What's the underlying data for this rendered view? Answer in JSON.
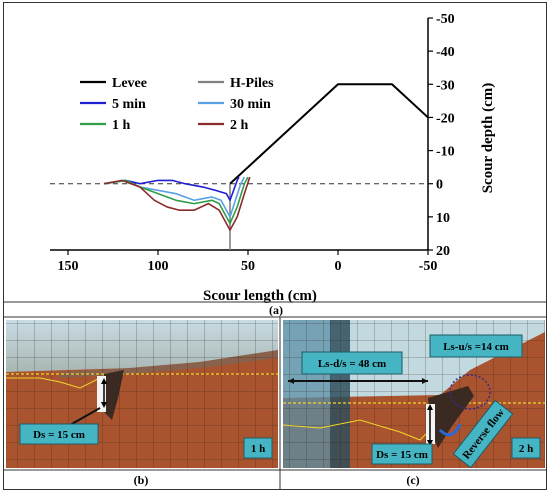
{
  "chart_data": {
    "type": "line",
    "title": "",
    "xlabel": "Scour length (cm)",
    "ylabel": "Scour depth (cm)",
    "xlim": [
      160,
      -50
    ],
    "ylim": [
      20,
      -50
    ],
    "x_ticks": [
      150,
      100,
      50,
      0,
      -50
    ],
    "y_ticks": [
      -50,
      -40,
      -30,
      -20,
      -10,
      0,
      10,
      20
    ],
    "legend_position": "top-left",
    "series": [
      {
        "name": "Levee",
        "color": "#000000",
        "x": [
          60,
          0,
          -30,
          -50
        ],
        "y": [
          0,
          -30,
          -30,
          -20
        ]
      },
      {
        "name": "H-Piles",
        "color": "#808080",
        "x": [
          60,
          60
        ],
        "y": [
          0,
          20
        ]
      },
      {
        "name": "5 min",
        "color": "#1f1fd0",
        "x": [
          130,
          118,
          110,
          100,
          92,
          85,
          75,
          68,
          62,
          60,
          58,
          56,
          55
        ],
        "y": [
          0,
          -1,
          0,
          -1,
          -1,
          0,
          1,
          2,
          3,
          5,
          2,
          -1,
          -2
        ]
      },
      {
        "name": "30 min",
        "color": "#5aa0e6",
        "x": [
          130,
          118,
          110,
          100,
          90,
          80,
          70,
          65,
          62,
          60,
          57,
          54,
          52
        ],
        "y": [
          0,
          -1,
          1,
          2,
          3,
          5,
          4,
          5,
          8,
          10,
          5,
          0,
          -2
        ]
      },
      {
        "name": "1 h",
        "color": "#2e9e48",
        "x": [
          130,
          118,
          110,
          100,
          90,
          80,
          70,
          66,
          62,
          60,
          56,
          52,
          50
        ],
        "y": [
          0,
          -1,
          1,
          3,
          5,
          6,
          5,
          6,
          10,
          12,
          7,
          0,
          -2
        ]
      },
      {
        "name": "2 h",
        "color": "#8b2b2b",
        "x": [
          130,
          120,
          110,
          102,
          95,
          88,
          80,
          72,
          66,
          62,
          60,
          56,
          52,
          49
        ],
        "y": [
          0,
          -1,
          1,
          5,
          7,
          8,
          8,
          6,
          8,
          12,
          14,
          10,
          3,
          -2
        ]
      }
    ]
  },
  "panel_labels": {
    "a": "(a)",
    "b": "(b)",
    "c": "(c)"
  },
  "photo_b": {
    "ds": "Ds = 15 cm",
    "time": "1 h"
  },
  "photo_c": {
    "ls_ds": "Ls-d/s = 48 cm",
    "ls_us": "Ls-u/s =14 cm",
    "ds": "Ds = 15 cm",
    "reverse": "Reverse flow",
    "time": "2 h"
  },
  "colors": {
    "water": "#cfe0e8",
    "soil": "#b5532c",
    "bed_line": "#f0d22a",
    "callout_fill": "#46b5c3",
    "photo_bg": "#8e4a2c"
  }
}
